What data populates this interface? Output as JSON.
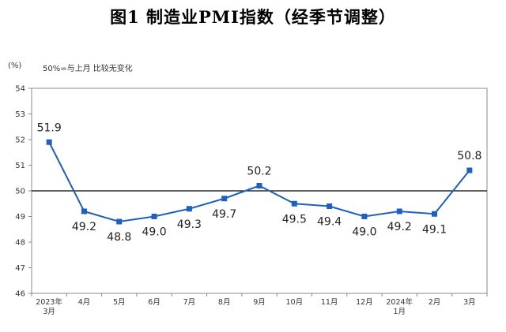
{
  "title": "图1  制造业PMI指数（经季节调整）",
  "unit_label": "(%)",
  "note": "50%=与上月 比较无变化",
  "chart_data": {
    "type": "line",
    "title": "图1  制造业PMI指数（经季节调整）",
    "ylabel": "(%)",
    "xlabel": "",
    "ylim": [
      46,
      54
    ],
    "yticks": [
      46,
      47,
      48,
      49,
      50,
      51,
      52,
      53,
      54
    ],
    "reference_line": 50,
    "grid": false,
    "legend": "none",
    "color": "#1f5fbf",
    "categories": [
      [
        "2023年",
        "3月"
      ],
      [
        "4月"
      ],
      [
        "5月"
      ],
      [
        "6月"
      ],
      [
        "7月"
      ],
      [
        "8月"
      ],
      [
        "9月"
      ],
      [
        "10月"
      ],
      [
        "11月"
      ],
      [
        "12月"
      ],
      [
        "2024年",
        "1月"
      ],
      [
        "2月"
      ],
      [
        "3月"
      ]
    ],
    "values": [
      51.9,
      49.2,
      48.8,
      49.0,
      49.3,
      49.7,
      50.2,
      49.5,
      49.4,
      49.0,
      49.2,
      49.1,
      50.8
    ],
    "data_labels": [
      "51.9",
      "49.2",
      "48.8",
      "49.0",
      "49.3",
      "49.7",
      "50.2",
      "49.5",
      "49.4",
      "49.0",
      "49.2",
      "49.1",
      "50.8"
    ]
  }
}
